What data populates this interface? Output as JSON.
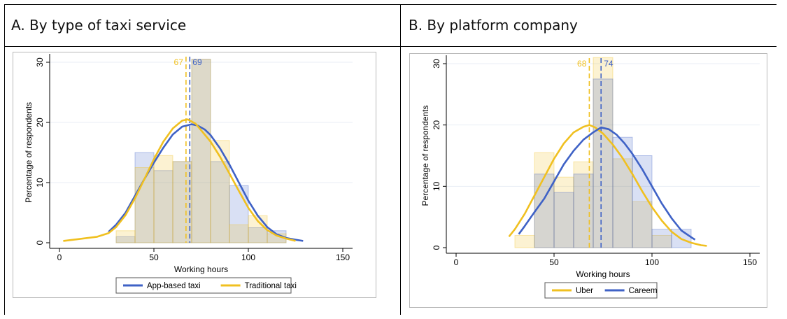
{
  "panels": [
    {
      "title": "A. By type of taxi service"
    },
    {
      "title": "B. By platform company"
    }
  ],
  "chart_data": [
    {
      "type": "bar",
      "overlay": "kernel density lines + mean reference lines",
      "xlabel": "Working hours",
      "ylabel": "Percentage of respondents",
      "xlim": [
        0,
        150
      ],
      "ylim": [
        0,
        30
      ],
      "xticks": [
        0,
        50,
        100,
        150
      ],
      "yticks": [
        0,
        10,
        20,
        30
      ],
      "grid": "horizontal",
      "legend_position": "bottom",
      "bin_edges": [
        30,
        40,
        50,
        60,
        70,
        80,
        90,
        100,
        110,
        120
      ],
      "series": [
        {
          "name": "App-based taxi",
          "color": "#3f62c6",
          "hist": [
            1.0,
            15.0,
            12.0,
            13.5,
            30.5,
            13.5,
            9.5,
            2.5,
            2.0
          ],
          "mean": 69,
          "density": [
            [
              26,
              1.8
            ],
            [
              30,
              3.0
            ],
            [
              35,
              5.0
            ],
            [
              40,
              7.8
            ],
            [
              45,
              10.6
            ],
            [
              50,
              13.3
            ],
            [
              55,
              15.8
            ],
            [
              60,
              18.0
            ],
            [
              65,
              19.3
            ],
            [
              70,
              19.7
            ],
            [
              73,
              19.5
            ],
            [
              77,
              18.8
            ],
            [
              80,
              17.9
            ],
            [
              85,
              15.7
            ],
            [
              90,
              13.0
            ],
            [
              95,
              10.0
            ],
            [
              100,
              7.0
            ],
            [
              105,
              4.5
            ],
            [
              110,
              2.6
            ],
            [
              115,
              1.4
            ],
            [
              120,
              0.8
            ],
            [
              125,
              0.5
            ],
            [
              129,
              0.3
            ]
          ]
        },
        {
          "name": "Traditional taxi",
          "color": "#f0c020",
          "hist": [
            2.0,
            12.5,
            14.5,
            13.5,
            30.5,
            17.0,
            3.0,
            4.5,
            1.5
          ],
          "mean": 67,
          "density": [
            [
              2,
              0.3
            ],
            [
              10,
              0.6
            ],
            [
              20,
              1.0
            ],
            [
              26,
              1.6
            ],
            [
              30,
              2.6
            ],
            [
              35,
              4.6
            ],
            [
              40,
              7.4
            ],
            [
              45,
              10.6
            ],
            [
              50,
              13.9
            ],
            [
              55,
              16.8
            ],
            [
              60,
              19.0
            ],
            [
              65,
              20.3
            ],
            [
              68,
              20.5
            ],
            [
              72,
              19.8
            ],
            [
              75,
              18.7
            ],
            [
              80,
              16.8
            ],
            [
              85,
              14.3
            ],
            [
              90,
              11.5
            ],
            [
              95,
              8.6
            ],
            [
              100,
              5.8
            ],
            [
              105,
              3.6
            ],
            [
              110,
              2.1
            ],
            [
              115,
              1.2
            ],
            [
              120,
              0.7
            ],
            [
              125,
              0.3
            ]
          ]
        }
      ]
    },
    {
      "type": "bar",
      "overlay": "kernel density lines + mean reference lines",
      "xlabel": "Working hours",
      "ylabel": "Percentage of respondents",
      "xlim": [
        0,
        150
      ],
      "ylim": [
        0,
        30
      ],
      "xticks": [
        0,
        50,
        100,
        150
      ],
      "yticks": [
        0,
        10,
        20,
        30
      ],
      "grid": "horizontal",
      "legend_position": "bottom",
      "bin_edges": [
        30,
        40,
        50,
        60,
        70,
        80,
        90,
        100,
        110,
        120
      ],
      "series": [
        {
          "name": "Uber",
          "color": "#f0c020",
          "hist": [
            2.0,
            15.5,
            11.5,
            14.0,
            31.0,
            14.5,
            7.5,
            2.0,
            0.0
          ],
          "mean": 68,
          "density": [
            [
              27,
              1.8
            ],
            [
              30,
              3.0
            ],
            [
              35,
              5.5
            ],
            [
              40,
              8.5
            ],
            [
              45,
              11.5
            ],
            [
              50,
              14.5
            ],
            [
              55,
              17.0
            ],
            [
              60,
              18.8
            ],
            [
              65,
              19.7
            ],
            [
              68,
              20.0
            ],
            [
              71,
              19.6
            ],
            [
              75,
              18.6
            ],
            [
              80,
              16.8
            ],
            [
              85,
              14.6
            ],
            [
              90,
              12.0
            ],
            [
              95,
              9.2
            ],
            [
              100,
              6.6
            ],
            [
              105,
              4.4
            ],
            [
              110,
              2.6
            ],
            [
              115,
              1.4
            ],
            [
              120,
              0.8
            ],
            [
              125,
              0.4
            ],
            [
              128,
              0.3
            ]
          ]
        },
        {
          "name": "Careem",
          "color": "#3f62c6",
          "hist": [
            0.0,
            12.0,
            9.0,
            12.0,
            27.5,
            18.0,
            15.0,
            3.0,
            3.0
          ],
          "mean": 74,
          "density": [
            [
              32,
              2.2
            ],
            [
              35,
              3.5
            ],
            [
              40,
              5.8
            ],
            [
              45,
              8.0
            ],
            [
              50,
              10.8
            ],
            [
              55,
              13.6
            ],
            [
              60,
              15.8
            ],
            [
              65,
              17.6
            ],
            [
              70,
              18.8
            ],
            [
              74,
              19.6
            ],
            [
              78,
              19.3
            ],
            [
              82,
              18.4
            ],
            [
              86,
              17.0
            ],
            [
              90,
              15.3
            ],
            [
              95,
              12.8
            ],
            [
              100,
              10.0
            ],
            [
              105,
              7.2
            ],
            [
              110,
              4.8
            ],
            [
              115,
              2.8
            ],
            [
              120,
              1.7
            ],
            [
              122,
              1.3
            ]
          ]
        }
      ]
    }
  ]
}
